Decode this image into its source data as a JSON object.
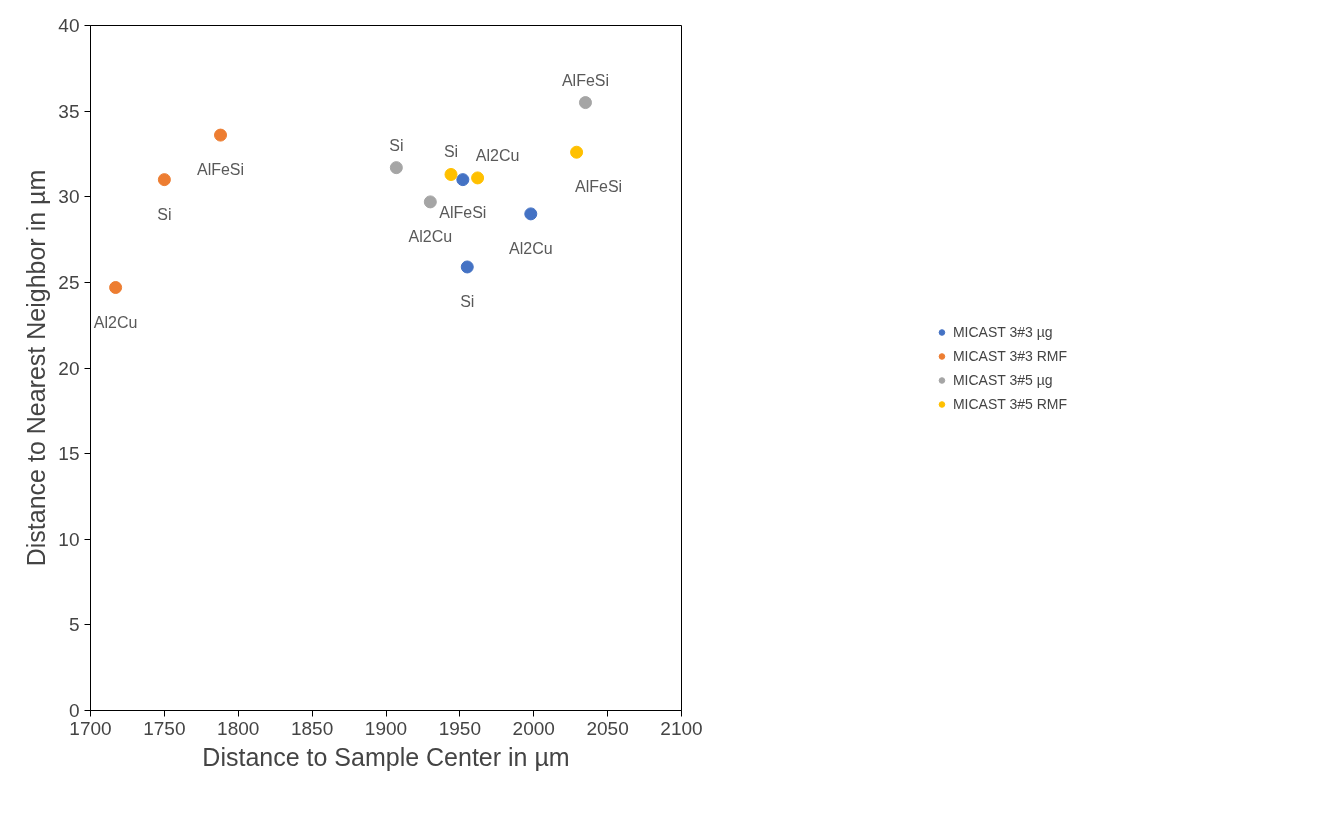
{
  "chart_data": {
    "type": "scatter",
    "xlabel": "Distance to Sample Center in µm",
    "ylabel": "Distance to Nearest Neighbor in µm",
    "xlim": [
      1700,
      2100
    ],
    "ylim": [
      0,
      40
    ],
    "xticks": [
      1700,
      1750,
      1800,
      1850,
      1900,
      1950,
      2000,
      2050,
      2100
    ],
    "yticks": [
      0,
      5,
      10,
      15,
      20,
      25,
      30,
      35,
      40
    ],
    "grid": false,
    "legend": "right",
    "marker": "circle",
    "series": [
      {
        "name": "MICAST 3#3 µg",
        "color": "#4472c4",
        "x": [
          1952,
          1955,
          1998
        ],
        "values": [
          31.0,
          25.9,
          29.0
        ]
      },
      {
        "name": "MICAST 3#3 RMF",
        "color": "#ed7d31",
        "x": [
          1717,
          1750,
          1788
        ],
        "values": [
          24.7,
          31.0,
          33.6
        ]
      },
      {
        "name": "MICAST 3#5 µg",
        "color": "#a5a5a5",
        "x": [
          1907,
          1930,
          2035
        ],
        "values": [
          31.7,
          29.7,
          35.5
        ]
      },
      {
        "name": "MICAST 3#5 RMF",
        "color": "#ffc000",
        "x": [
          1944,
          1962,
          2029
        ],
        "values": [
          31.3,
          31.1,
          32.6
        ]
      }
    ],
    "annotations": [
      {
        "text": "AlFeSi",
        "x": 1952,
        "y": 31.0
      },
      {
        "text": "Si",
        "x": 1955,
        "y": 25.9
      },
      {
        "text": "Al2Cu",
        "x": 1998,
        "y": 29.0
      },
      {
        "text": "Al2Cu",
        "x": 1717,
        "y": 24.7
      },
      {
        "text": "Si",
        "x": 1750,
        "y": 31.0
      },
      {
        "text": "AlFeSi",
        "x": 1788,
        "y": 33.6
      },
      {
        "text": "Si",
        "x": 1907,
        "y": 31.7
      },
      {
        "text": "Al2Cu",
        "x": 1930,
        "y": 29.7
      },
      {
        "text": "AlFeSi",
        "x": 2035,
        "y": 35.5
      },
      {
        "text": "Si",
        "x": 1944,
        "y": 31.3
      },
      {
        "text": "Al2Cu",
        "x": 1962,
        "y": 31.1
      },
      {
        "text": "AlFeSi",
        "x": 2029,
        "y": 32.6
      }
    ]
  }
}
